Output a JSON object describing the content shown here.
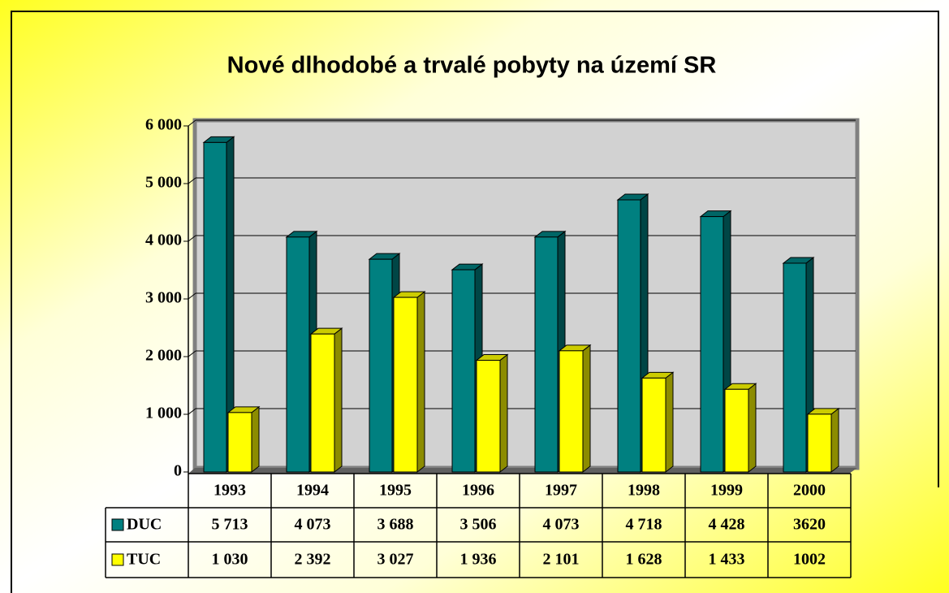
{
  "chart_data": {
    "type": "bar3d",
    "title": "Nové dlhodobé a trvalé pobyty na území SR",
    "categories": [
      "1993",
      "1994",
      "1995",
      "1996",
      "1997",
      "1998",
      "1999",
      "2000"
    ],
    "series": [
      {
        "name": "DUC",
        "color": "#008080",
        "values": [
          5713,
          4073,
          3688,
          3506,
          4073,
          4718,
          4428,
          3620
        ],
        "value_labels": [
          "5 713",
          "4 073",
          "3 688",
          "3 506",
          "4 073",
          "4 718",
          "4 428",
          "3620"
        ]
      },
      {
        "name": "TUC",
        "color": "#ffff00",
        "values": [
          1030,
          2392,
          3027,
          1936,
          2101,
          1628,
          1433,
          1002
        ],
        "value_labels": [
          "1 030",
          "2 392",
          "3 027",
          "1 936",
          "2 101",
          "1 628",
          "1 433",
          "1002"
        ]
      }
    ],
    "ylim": [
      0,
      6000
    ],
    "yticks": [
      0,
      {
        "value": 1000,
        "label": "1 000"
      },
      {
        "value": 2000,
        "label": "2 000"
      },
      {
        "value": 3000,
        "label": "3 000"
      },
      {
        "value": 4000,
        "label": "4 000"
      },
      {
        "value": 5000,
        "label": "5 000"
      },
      {
        "value": 6000,
        "label": "6 000"
      }
    ],
    "grid": true
  }
}
